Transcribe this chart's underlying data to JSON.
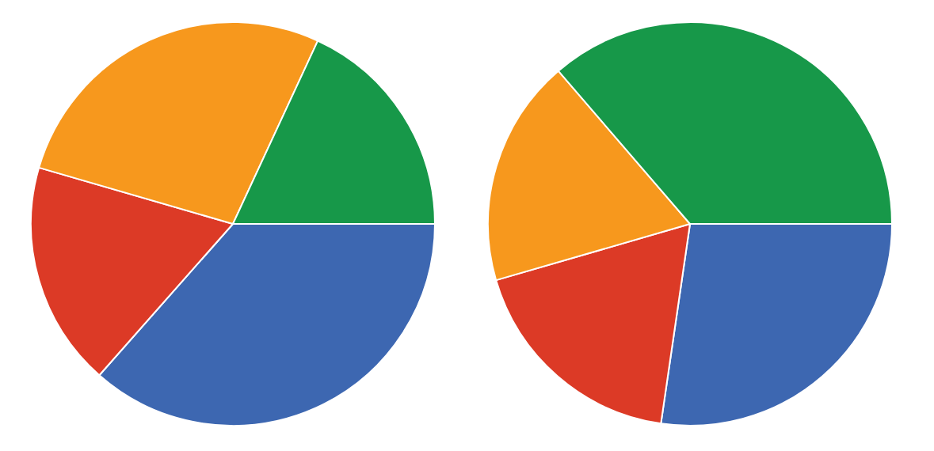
{
  "chart_data": [
    {
      "type": "pie",
      "categories": [
        null,
        null,
        null,
        null
      ],
      "values": [
        36.5,
        18,
        27.4,
        18.1
      ],
      "colors": [
        "#3d67b1",
        "#dc3a26",
        "#f7981d",
        "#179849"
      ]
    },
    {
      "type": "pie",
      "categories": [
        null,
        null,
        null,
        null
      ],
      "values": [
        27.3,
        18.2,
        18.2,
        36.3
      ],
      "colors": [
        "#3d67b1",
        "#dc3a26",
        "#f7981d",
        "#179849"
      ]
    }
  ]
}
